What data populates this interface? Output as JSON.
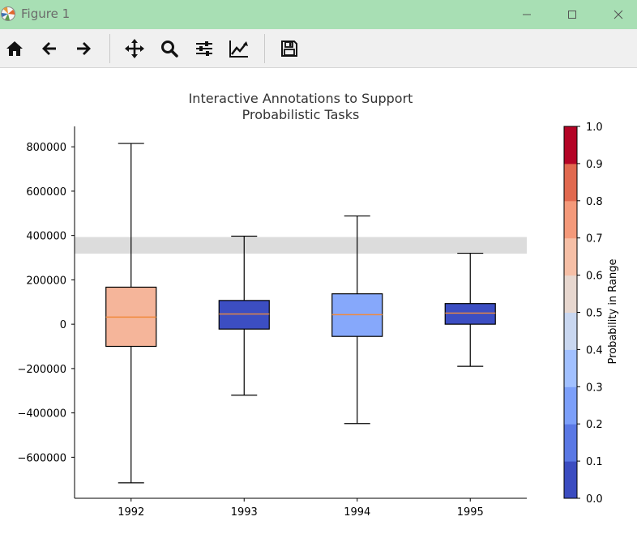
{
  "window": {
    "title": "Figure 1",
    "titlebar_color": "#a8dfb4"
  },
  "toolbar": {
    "buttons": [
      {
        "name": "home-icon"
      },
      {
        "name": "back-arrow-icon"
      },
      {
        "name": "forward-arrow-icon"
      },
      {
        "name": "pan-move-icon"
      },
      {
        "name": "zoom-magnifier-icon"
      },
      {
        "name": "configure-subplots-icon"
      },
      {
        "name": "edit-axis-curve-icon"
      },
      {
        "name": "save-floppy-icon"
      }
    ]
  },
  "chart_data": {
    "type": "box",
    "title": "Interactive Annotations to Support\nProbabilistic Tasks",
    "xlabel": "",
    "ylabel": "",
    "categories": [
      "1992",
      "1993",
      "1994",
      "1995"
    ],
    "boxes": [
      {
        "category": "1992",
        "whisker_low": -715000,
        "q1": -100000,
        "median": 32000,
        "q3": 167000,
        "whisker_high": 815000,
        "color": "#f5b59a"
      },
      {
        "category": "1993",
        "whisker_low": -320000,
        "q1": -22000,
        "median": 46000,
        "q3": 107000,
        "whisker_high": 397000,
        "color": "#3c4ec2"
      },
      {
        "category": "1994",
        "whisker_low": -448000,
        "q1": -55000,
        "median": 43000,
        "q3": 137000,
        "whisker_high": 488000,
        "color": "#86a8fb"
      },
      {
        "category": "1995",
        "whisker_low": -190000,
        "q1": 0,
        "median": 50000,
        "q3": 93000,
        "whisker_high": 320000,
        "color": "#3c4ec2"
      }
    ],
    "highlight_range": [
      318000,
      393000
    ],
    "highlight_color": "#dcdcdc",
    "median_color": "#f08a3c",
    "ylim": [
      -785000,
      892000
    ],
    "yticks": [
      -600000,
      -400000,
      -200000,
      0,
      200000,
      400000,
      600000,
      800000
    ],
    "ytick_labels": [
      "−600000",
      "−400000",
      "−200000",
      "0",
      "200000",
      "400000",
      "600000",
      "800000"
    ],
    "colorbar": {
      "label": "Probability in Range",
      "ticks": [
        "0.0",
        "0.1",
        "0.2",
        "0.3",
        "0.4",
        "0.5",
        "0.6",
        "0.7",
        "0.8",
        "0.9",
        "1.0"
      ],
      "colors": [
        "#3b4cc0",
        "#5a78e4",
        "#7c9ff9",
        "#a1c0ff",
        "#c9d7f0",
        "#e7d7cf",
        "#f6bfa6",
        "#f4997a",
        "#e1694f",
        "#b40426"
      ]
    }
  }
}
